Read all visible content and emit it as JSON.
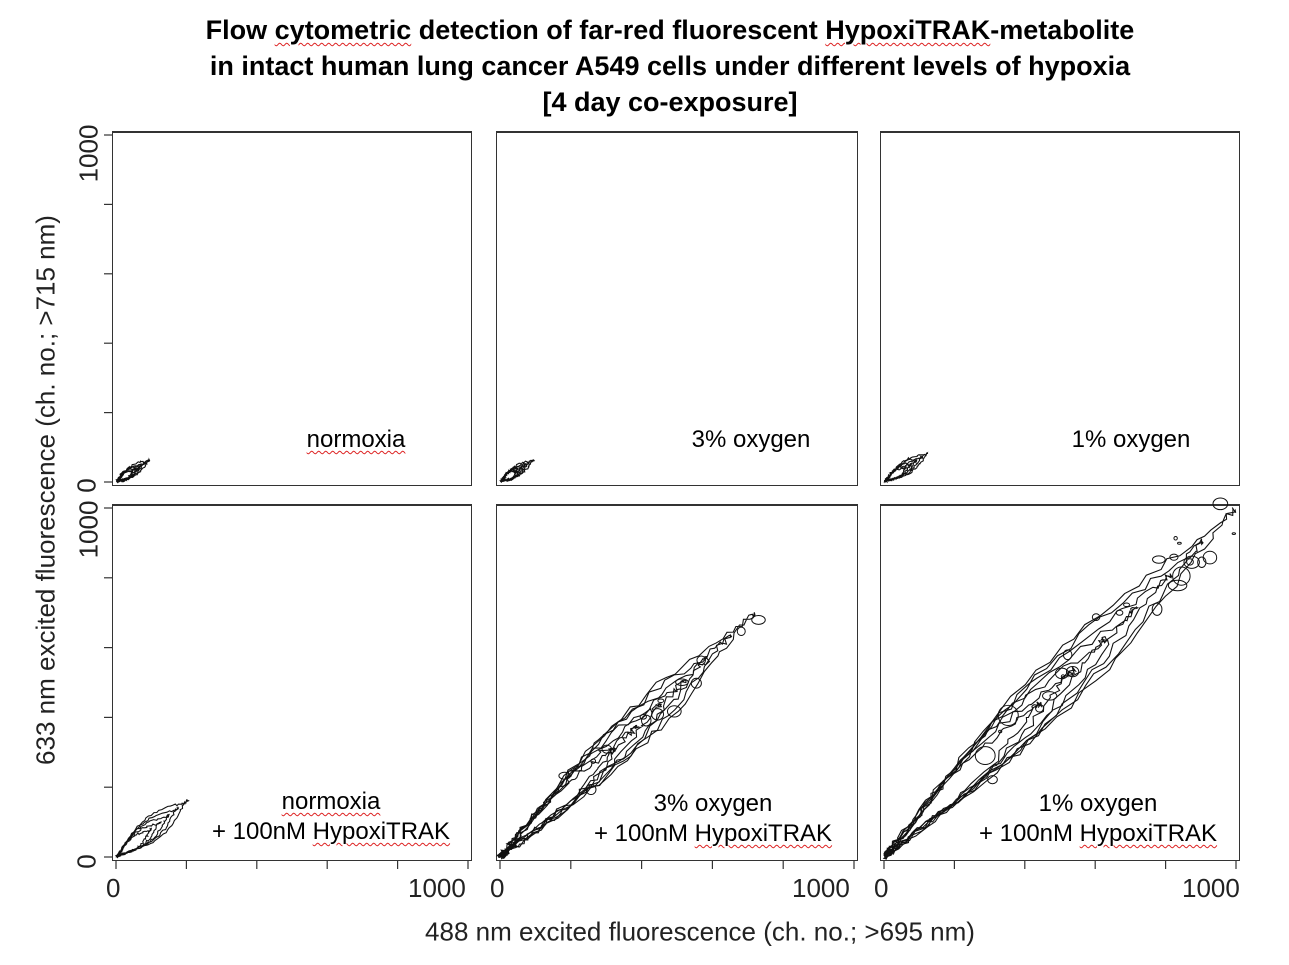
{
  "title": {
    "line1_pre": "Flow ",
    "line1_w1": "cytometric",
    "line1_mid": " detection of far-red fluorescent ",
    "line1_w2": "HypoxiTRAK",
    "line1_post": "-metabolite",
    "line2": "in intact human lung cancer A549 cells under different levels of hypoxia",
    "line3": "[4 day co-exposure]"
  },
  "y_axis_label": "633 nm excited fluorescence (ch. no.; >715 nm)",
  "x_axis_label": "488 nm excited fluorescence (ch. no.; >695 nm)",
  "chart_data": {
    "type": "contour",
    "layout": "2x3 panel grid",
    "xlim": [
      0,
      1000
    ],
    "ylim": [
      0,
      1000
    ],
    "x_ticks": [
      "0",
      "1000"
    ],
    "y_ticks": [
      "0",
      "1000"
    ],
    "panels": [
      {
        "label_line1": "normoxia",
        "label_line1_squig": true,
        "label_line2_pre": "",
        "label_line2_squig": "",
        "cluster": {
          "x_range": [
            0,
            90
          ],
          "y_range": [
            0,
            60
          ],
          "max_density_at": [
            30,
            20
          ]
        }
      },
      {
        "label_line1": "3% oxygen",
        "label_line1_squig": false,
        "label_line2_pre": "",
        "label_line2_squig": "",
        "cluster": {
          "x_range": [
            0,
            90
          ],
          "y_range": [
            0,
            60
          ],
          "max_density_at": [
            30,
            20
          ]
        }
      },
      {
        "label_line1": "1% oxygen",
        "label_line1_squig": false,
        "label_line2_pre": "",
        "label_line2_squig": "",
        "cluster": {
          "x_range": [
            0,
            120
          ],
          "y_range": [
            0,
            80
          ],
          "max_density_at": [
            40,
            25
          ]
        }
      },
      {
        "label_line1": "normoxia",
        "label_line1_squig": true,
        "label_line2_pre": "+ 100nM ",
        "label_line2_squig": "HypoxiTRAK",
        "cluster": {
          "x_range": [
            0,
            200
          ],
          "y_range": [
            0,
            160
          ],
          "max_density_at": [
            30,
            25
          ]
        }
      },
      {
        "label_line1": "3% oxygen",
        "label_line1_squig": false,
        "label_line2_pre": "+ 100nM ",
        "label_line2_squig": "HypoxiTRAK",
        "cluster": {
          "x_range": [
            0,
            720
          ],
          "y_range": [
            0,
            700
          ],
          "max_density_at": [
            30,
            25
          ]
        }
      },
      {
        "label_line1": "1% oxygen",
        "label_line1_squig": false,
        "label_line2_pre": "+ 100nM ",
        "label_line2_squig": "HypoxiTRAK",
        "cluster": {
          "x_range": [
            0,
            1000
          ],
          "y_range": [
            0,
            1000
          ],
          "max_density_at": [
            30,
            25
          ]
        }
      }
    ]
  }
}
